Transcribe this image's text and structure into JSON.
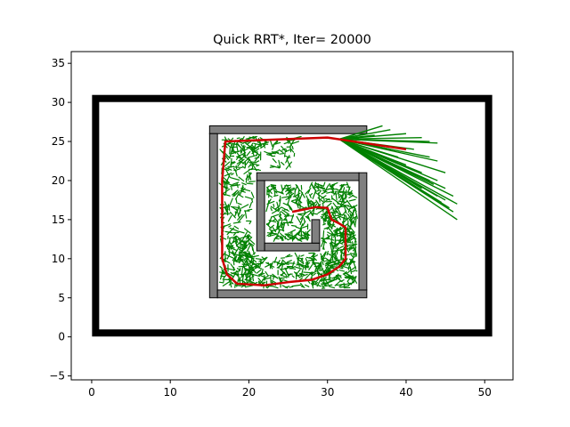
{
  "chart_data": {
    "type": "line",
    "title": "Quick RRT*, Iter= 20000",
    "xlabel": "",
    "ylabel": "",
    "xlim": [
      -2.6,
      53.6
    ],
    "ylim": [
      -5.5,
      36.5
    ],
    "xticks": [
      0,
      10,
      20,
      30,
      40,
      50
    ],
    "yticks": [
      -5,
      0,
      5,
      10,
      15,
      20,
      25,
      30,
      35
    ],
    "grid": false,
    "colors": {
      "boundary": "#000000",
      "obstacle_fill": "#808080",
      "obstacle_edge": "#000000",
      "tree": "#008000",
      "path": "#cc0000"
    },
    "boundary": {
      "x0": 0.5,
      "y0": 0.5,
      "x1": 50.5,
      "y1": 30.5
    },
    "obstacles": [
      {
        "x0": 15.0,
        "y0": 26.0,
        "x1": 35.0,
        "y1": 27.0
      },
      {
        "x0": 15.0,
        "y0": 5.0,
        "x1": 16.0,
        "y1": 26.0
      },
      {
        "x0": 16.0,
        "y0": 5.0,
        "x1": 35.0,
        "y1": 6.0
      },
      {
        "x0": 34.0,
        "y0": 6.0,
        "x1": 35.0,
        "y1": 21.0
      },
      {
        "x0": 21.0,
        "y0": 20.0,
        "x1": 34.0,
        "y1": 21.0
      },
      {
        "x0": 21.0,
        "y0": 11.0,
        "x1": 22.0,
        "y1": 20.0
      },
      {
        "x0": 22.0,
        "y0": 11.0,
        "x1": 29.0,
        "y1": 12.0
      },
      {
        "x0": 28.0,
        "y0": 12.0,
        "x1": 29.0,
        "y1": 15.0
      }
    ],
    "path": [
      [
        40.0,
        24.0
      ],
      [
        30.0,
        25.5
      ],
      [
        17.0,
        25.0
      ],
      [
        16.6,
        20.0
      ],
      [
        16.6,
        10.0
      ],
      [
        17.2,
        8.0
      ],
      [
        18.5,
        6.8
      ],
      [
        22.0,
        6.6
      ],
      [
        25.0,
        7.0
      ],
      [
        28.0,
        7.3
      ],
      [
        30.0,
        8.0
      ],
      [
        31.5,
        9.0
      ],
      [
        32.3,
        10.0
      ],
      [
        32.3,
        14.0
      ],
      [
        31.5,
        14.5
      ],
      [
        30.5,
        15.0
      ],
      [
        30.0,
        16.5
      ],
      [
        28.5,
        16.6
      ],
      [
        25.5,
        16.0
      ]
    ],
    "fan_start": [
      31.5,
      25.3
    ],
    "fan_targets": [
      [
        34,
        25.5
      ],
      [
        35,
        26
      ],
      [
        37,
        27
      ],
      [
        36,
        25.8
      ],
      [
        38,
        26.5
      ],
      [
        40,
        26
      ],
      [
        42,
        25.5
      ],
      [
        43,
        25
      ],
      [
        44,
        24.8
      ],
      [
        41,
        24
      ],
      [
        43,
        23
      ],
      [
        44,
        22.5
      ],
      [
        45,
        21
      ],
      [
        44,
        20
      ],
      [
        45,
        19
      ],
      [
        46,
        18
      ],
      [
        46.5,
        17
      ],
      [
        46,
        16
      ],
      [
        46.5,
        15
      ],
      [
        45,
        17.5
      ],
      [
        44,
        18
      ],
      [
        43,
        20
      ],
      [
        42,
        21
      ],
      [
        40,
        22
      ],
      [
        39,
        23
      ],
      [
        38,
        24
      ],
      [
        42,
        19
      ],
      [
        45.5,
        16.5
      ],
      [
        44.5,
        17.2
      ],
      [
        43.5,
        19.5
      ]
    ]
  }
}
